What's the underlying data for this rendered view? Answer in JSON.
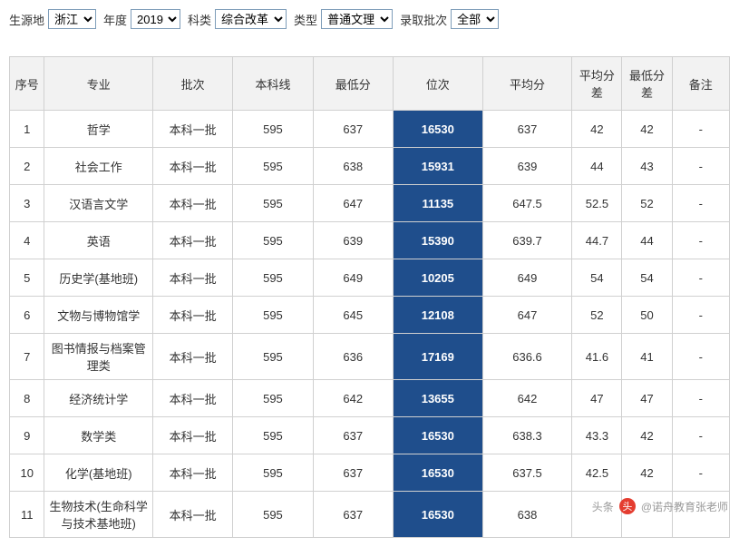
{
  "filters": {
    "origin": {
      "label": "生源地",
      "value": "浙江"
    },
    "year": {
      "label": "年度",
      "value": "2019"
    },
    "subject": {
      "label": "科类",
      "value": "综合改革"
    },
    "type": {
      "label": "类型",
      "value": "普通文理"
    },
    "batch": {
      "label": "录取批次",
      "value": "全部"
    }
  },
  "columns": [
    "序号",
    "专业",
    "批次",
    "本科线",
    "最低分",
    "位次",
    "平均分",
    "平均分差",
    "最低分差",
    "备注"
  ],
  "rank_col_index": 5,
  "rows": [
    {
      "seq": "1",
      "major": "哲学",
      "batch": "本科一批",
      "line": "595",
      "min": "637",
      "rank": "16530",
      "avg": "637",
      "adiff": "42",
      "mdiff": "42",
      "note": "-"
    },
    {
      "seq": "2",
      "major": "社会工作",
      "batch": "本科一批",
      "line": "595",
      "min": "638",
      "rank": "15931",
      "avg": "639",
      "adiff": "44",
      "mdiff": "43",
      "note": "-"
    },
    {
      "seq": "3",
      "major": "汉语言文学",
      "batch": "本科一批",
      "line": "595",
      "min": "647",
      "rank": "11135",
      "avg": "647.5",
      "adiff": "52.5",
      "mdiff": "52",
      "note": "-"
    },
    {
      "seq": "4",
      "major": "英语",
      "batch": "本科一批",
      "line": "595",
      "min": "639",
      "rank": "15390",
      "avg": "639.7",
      "adiff": "44.7",
      "mdiff": "44",
      "note": "-"
    },
    {
      "seq": "5",
      "major": "历史学(基地班)",
      "batch": "本科一批",
      "line": "595",
      "min": "649",
      "rank": "10205",
      "avg": "649",
      "adiff": "54",
      "mdiff": "54",
      "note": "-"
    },
    {
      "seq": "6",
      "major": "文物与博物馆学",
      "batch": "本科一批",
      "line": "595",
      "min": "645",
      "rank": "12108",
      "avg": "647",
      "adiff": "52",
      "mdiff": "50",
      "note": "-"
    },
    {
      "seq": "7",
      "major": "图书情报与档案管理类",
      "batch": "本科一批",
      "line": "595",
      "min": "636",
      "rank": "17169",
      "avg": "636.6",
      "adiff": "41.6",
      "mdiff": "41",
      "note": "-"
    },
    {
      "seq": "8",
      "major": "经济统计学",
      "batch": "本科一批",
      "line": "595",
      "min": "642",
      "rank": "13655",
      "avg": "642",
      "adiff": "47",
      "mdiff": "47",
      "note": "-"
    },
    {
      "seq": "9",
      "major": "数学类",
      "batch": "本科一批",
      "line": "595",
      "min": "637",
      "rank": "16530",
      "avg": "638.3",
      "adiff": "43.3",
      "mdiff": "42",
      "note": "-"
    },
    {
      "seq": "10",
      "major": "化学(基地班)",
      "batch": "本科一批",
      "line": "595",
      "min": "637",
      "rank": "16530",
      "avg": "637.5",
      "adiff": "42.5",
      "mdiff": "42",
      "note": "-"
    },
    {
      "seq": "11",
      "major": "生物技术(生命科学与技术基地班)",
      "batch": "本科一批",
      "line": "595",
      "min": "637",
      "rank": "16530",
      "avg": "638",
      "adiff": "",
      "mdiff": "",
      "note": ""
    }
  ],
  "col_classes": [
    "col-seq",
    "col-major",
    "col-batch",
    "col-line",
    "col-min",
    "col-rank",
    "col-avg",
    "col-adiff",
    "col-mdiff",
    "col-note"
  ],
  "row_keys": [
    "seq",
    "major",
    "batch",
    "line",
    "min",
    "rank",
    "avg",
    "adiff",
    "mdiff",
    "note"
  ],
  "watermark": {
    "prefix": "头条",
    "text": "@诺舟教育张老师"
  }
}
